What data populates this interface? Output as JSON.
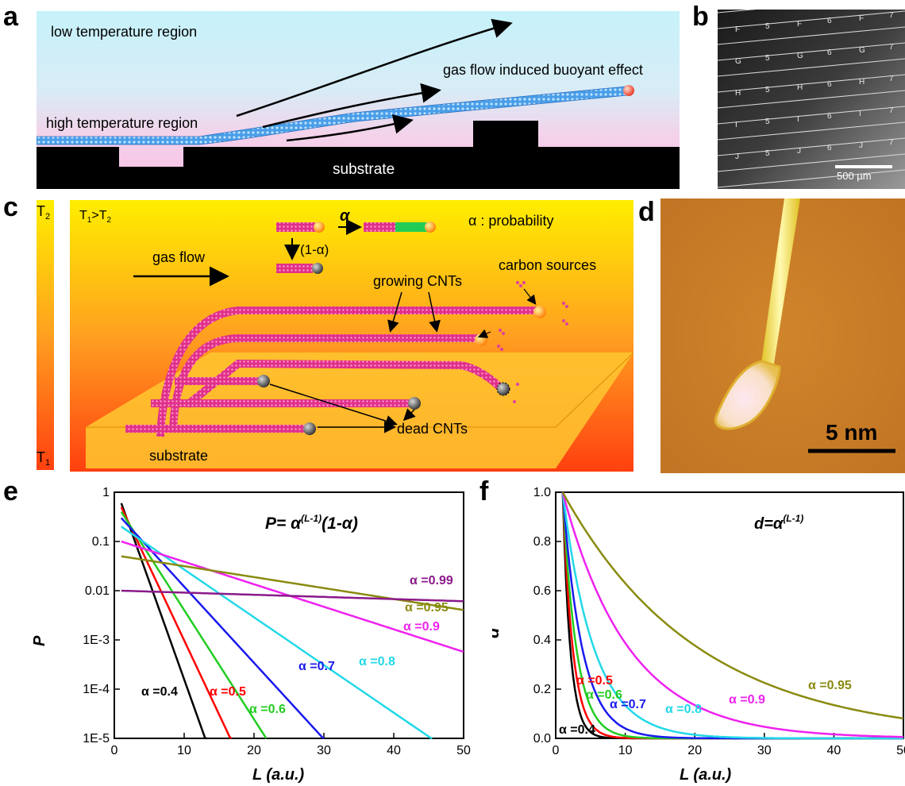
{
  "figure": {
    "letters": [
      "a",
      "b",
      "c",
      "d",
      "e",
      "f"
    ],
    "panel_a": {
      "low_region": "low temperature region",
      "high_region": "high temperature region",
      "flow_label": "gas flow induced buoyant effect",
      "substrate": "substrate"
    },
    "panel_b": {
      "scale_bar": "500 µm",
      "row_letters": [
        "F",
        "G",
        "H",
        "I",
        "J"
      ],
      "col_numbers": [
        "5",
        "6",
        "7"
      ]
    },
    "panel_c": {
      "t_top": "T",
      "t_top_sub": "2",
      "t_bottom": "T",
      "t_bottom_sub": "1",
      "relation_t1": "T",
      "relation_t1_sub": "1",
      "relation_gt": ">T",
      "relation_t2_sub": "2",
      "gas_flow": "gas flow",
      "alpha": "α",
      "one_minus_alpha": "(1-α)",
      "probability": "α : probability",
      "growing": "growing CNTs",
      "carbon": "carbon sources",
      "dead": "dead CNTs",
      "substrate": "substrate"
    },
    "panel_d": {
      "scale_bar": "5 nm"
    }
  },
  "chart_data": [
    {
      "type": "line",
      "panel": "e",
      "title": "",
      "formula_P": "P= ",
      "formula_alpha": "α",
      "formula_exp": "(L-1)",
      "formula_tail": "(1-α)",
      "xlabel": "L (a.u.)",
      "ylabel": "P",
      "xlim": [
        0,
        50
      ],
      "ylim": [
        1e-05,
        1
      ],
      "yscale": "log",
      "xticks": [
        0,
        10,
        20,
        30,
        40,
        50
      ],
      "xtick_labels": [
        "0",
        "10",
        "20",
        "30",
        "40",
        "50"
      ],
      "yticks": [
        1,
        0.1,
        0.01,
        0.001,
        0.0001,
        1e-05
      ],
      "ytick_labels": [
        "1",
        "0.1",
        "0.01",
        "1E-3",
        "1E-4",
        "1E-5"
      ],
      "series": [
        {
          "alpha": 0.4,
          "label": "α =0.4",
          "color": "#000000"
        },
        {
          "alpha": 0.5,
          "label": "α =0.5",
          "color": "#ff0000"
        },
        {
          "alpha": 0.6,
          "label": "α =0.6",
          "color": "#22cc22"
        },
        {
          "alpha": 0.7,
          "label": "α =0.7",
          "color": "#1a1aee"
        },
        {
          "alpha": 0.8,
          "label": "α =0.8",
          "color": "#22d8e8"
        },
        {
          "alpha": 0.9,
          "label": "α =0.9",
          "color": "#ee22ee"
        },
        {
          "alpha": 0.95,
          "label": "α =0.95",
          "color": "#8a8a10"
        },
        {
          "alpha": 0.99,
          "label": "α =0.99",
          "color": "#8a1a8a"
        }
      ]
    },
    {
      "type": "line",
      "panel": "f",
      "title": "",
      "formula_d": "d=",
      "formula_alpha": "α",
      "formula_exp": "(L-1)",
      "xlabel": "L (a.u.)",
      "ylabel": "d",
      "xlim": [
        0,
        50
      ],
      "ylim": [
        0,
        1.0
      ],
      "xticks": [
        0,
        10,
        20,
        30,
        40,
        50
      ],
      "xtick_labels": [
        "0",
        "10",
        "20",
        "30",
        "40",
        "50"
      ],
      "yticks": [
        0.0,
        0.2,
        0.4,
        0.6,
        0.8,
        1.0
      ],
      "ytick_labels": [
        "0.0",
        "0.2",
        "0.4",
        "0.6",
        "0.8",
        "1.0"
      ],
      "series": [
        {
          "alpha": 0.4,
          "label": "α =0.4",
          "color": "#000000"
        },
        {
          "alpha": 0.5,
          "label": "α =0.5",
          "color": "#ff0000"
        },
        {
          "alpha": 0.6,
          "label": "α =0.6",
          "color": "#22cc22"
        },
        {
          "alpha": 0.7,
          "label": "α =0.7",
          "color": "#1a1aee"
        },
        {
          "alpha": 0.8,
          "label": "α =0.8",
          "color": "#22d8e8"
        },
        {
          "alpha": 0.9,
          "label": "α =0.9",
          "color": "#ee22ee"
        },
        {
          "alpha": 0.95,
          "label": "α =0.95",
          "color": "#8a8a10"
        }
      ]
    }
  ]
}
